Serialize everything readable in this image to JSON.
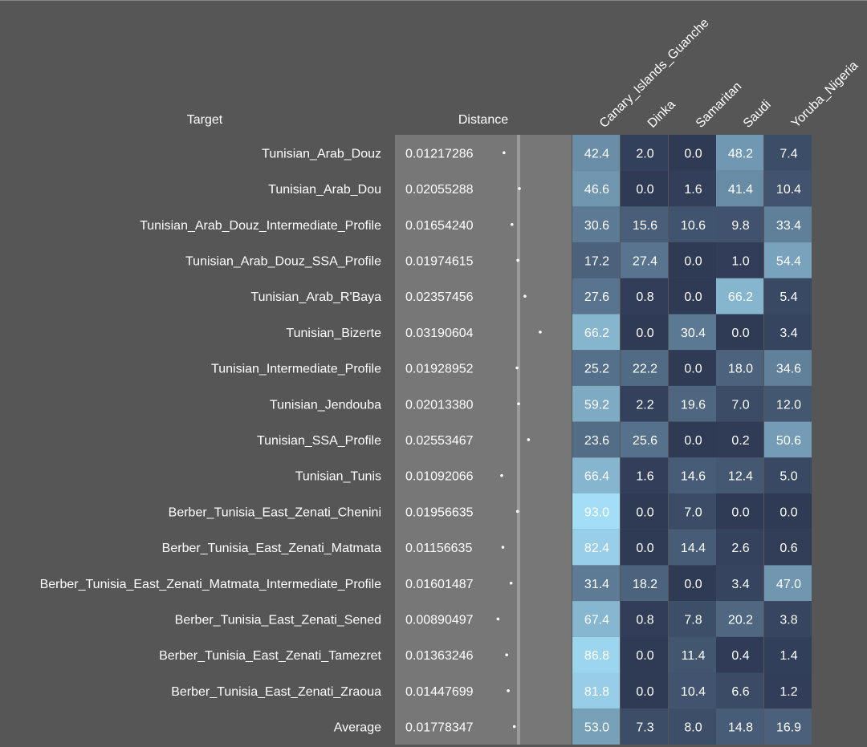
{
  "chart_data": {
    "type": "table",
    "headers": {
      "target": "Target",
      "distance": "Distance"
    },
    "columns": [
      "Canary_Islands_Guanche",
      "Dinka",
      "Samaritan",
      "Saudi",
      "Yoruba_Nigeria"
    ],
    "distance_scale_max": 0.07,
    "color_scale": {
      "low": "#2f3a55",
      "high": "#a3def7",
      "min": 0,
      "max": 93
    },
    "rows": [
      {
        "target": "Tunisian_Arab_Douz",
        "distance": "0.01217286",
        "distance_value": 0.01217286,
        "values": [
          42.4,
          2.0,
          0.0,
          48.2,
          7.4
        ]
      },
      {
        "target": "Tunisian_Arab_Dou",
        "distance": "0.02055288",
        "distance_value": 0.02055288,
        "values": [
          46.6,
          0.0,
          1.6,
          41.4,
          10.4
        ]
      },
      {
        "target": "Tunisian_Arab_Douz_Intermediate_Profile",
        "distance": "0.01654240",
        "distance_value": 0.0165424,
        "values": [
          30.6,
          15.6,
          10.6,
          9.8,
          33.4
        ]
      },
      {
        "target": "Tunisian_Arab_Douz_SSA_Profile",
        "distance": "0.01974615",
        "distance_value": 0.01974615,
        "values": [
          17.2,
          27.4,
          0.0,
          1.0,
          54.4
        ]
      },
      {
        "target": "Tunisian_Arab_R'Baya",
        "distance": "0.02357456",
        "distance_value": 0.02357456,
        "values": [
          27.6,
          0.8,
          0.0,
          66.2,
          5.4
        ]
      },
      {
        "target": "Tunisian_Bizerte",
        "distance": "0.03190604",
        "distance_value": 0.03190604,
        "values": [
          66.2,
          0.0,
          30.4,
          0.0,
          3.4
        ]
      },
      {
        "target": "Tunisian_Intermediate_Profile",
        "distance": "0.01928952",
        "distance_value": 0.01928952,
        "values": [
          25.2,
          22.2,
          0.0,
          18.0,
          34.6
        ]
      },
      {
        "target": "Tunisian_Jendouba",
        "distance": "0.02013380",
        "distance_value": 0.0201338,
        "values": [
          59.2,
          2.2,
          19.6,
          7.0,
          12.0
        ]
      },
      {
        "target": "Tunisian_SSA_Profile",
        "distance": "0.02553467",
        "distance_value": 0.02553467,
        "values": [
          23.6,
          25.6,
          0.0,
          0.2,
          50.6
        ]
      },
      {
        "target": "Tunisian_Tunis",
        "distance": "0.01092066",
        "distance_value": 0.01092066,
        "values": [
          66.4,
          1.6,
          14.6,
          12.4,
          5.0
        ]
      },
      {
        "target": "Berber_Tunisia_East_Zenati_Chenini",
        "distance": "0.01956635",
        "distance_value": 0.01956635,
        "values": [
          93.0,
          0.0,
          7.0,
          0.0,
          0.0
        ]
      },
      {
        "target": "Berber_Tunisia_East_Zenati_Matmata",
        "distance": "0.01156635",
        "distance_value": 0.01156635,
        "values": [
          82.4,
          0.0,
          14.4,
          2.6,
          0.6
        ]
      },
      {
        "target": "Berber_Tunisia_East_Zenati_Matmata_Intermediate_Profile",
        "distance": "0.01601487",
        "distance_value": 0.01601487,
        "values": [
          31.4,
          18.2,
          0.0,
          3.4,
          47.0
        ]
      },
      {
        "target": "Berber_Tunisia_East_Zenati_Sened",
        "distance": "0.00890497",
        "distance_value": 0.00890497,
        "values": [
          67.4,
          0.8,
          7.8,
          20.2,
          3.8
        ]
      },
      {
        "target": "Berber_Tunisia_East_Zenati_Tamezret",
        "distance": "0.01363246",
        "distance_value": 0.01363246,
        "values": [
          86.8,
          0.0,
          11.4,
          0.4,
          1.4
        ]
      },
      {
        "target": "Berber_Tunisia_East_Zenati_Zraoua",
        "distance": "0.01447699",
        "distance_value": 0.01447699,
        "values": [
          81.8,
          0.0,
          10.4,
          6.6,
          1.2
        ]
      },
      {
        "target": "Average",
        "distance": "0.01778347",
        "distance_value": 0.01778347,
        "values": [
          53.0,
          7.3,
          8.0,
          14.8,
          16.9
        ]
      }
    ]
  }
}
